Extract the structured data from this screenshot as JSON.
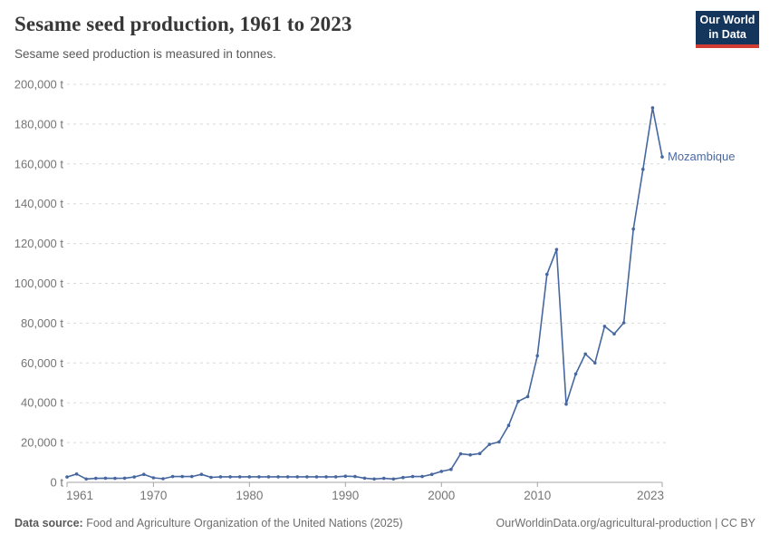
{
  "header": {
    "title": "Sesame seed production, 1961 to 2023",
    "subtitle": "Sesame seed production is measured in tonnes."
  },
  "logo": {
    "line1": "Our World",
    "line2": "in Data",
    "bg_color": "#14355c",
    "accent_color": "#d23d33"
  },
  "chart_data": {
    "type": "line",
    "title": "Sesame seed production, 1961 to 2023",
    "subtitle": "Sesame seed production is measured in tonnes.",
    "xlabel": "",
    "ylabel": "tonnes",
    "unit": "t",
    "xlim": [
      1961,
      2023
    ],
    "ylim": [
      0,
      200000
    ],
    "grid": "horizontal-dashed",
    "legend_position": "end-of-line",
    "entity_label": "Mozambique",
    "line_color": "#46679f",
    "x_ticks": [
      1961,
      1970,
      1980,
      1990,
      2000,
      2010,
      2023
    ],
    "y_ticks": [
      {
        "value": 0,
        "label": "0 t"
      },
      {
        "value": 20000,
        "label": "20,000 t"
      },
      {
        "value": 40000,
        "label": "40,000 t"
      },
      {
        "value": 60000,
        "label": "60,000 t"
      },
      {
        "value": 80000,
        "label": "80,000 t"
      },
      {
        "value": 100000,
        "label": "100,000 t"
      },
      {
        "value": 120000,
        "label": "120,000 t"
      },
      {
        "value": 140000,
        "label": "140,000 t"
      },
      {
        "value": 160000,
        "label": "160,000 t"
      },
      {
        "value": 180000,
        "label": "180,000 t"
      },
      {
        "value": 200000,
        "label": "200,000 t"
      }
    ],
    "series": [
      {
        "name": "Mozambique",
        "x": [
          1961,
          1962,
          1963,
          1964,
          1965,
          1966,
          1967,
          1968,
          1969,
          1970,
          1971,
          1972,
          1973,
          1974,
          1975,
          1976,
          1977,
          1978,
          1979,
          1980,
          1981,
          1982,
          1983,
          1984,
          1985,
          1986,
          1987,
          1988,
          1989,
          1990,
          1991,
          1992,
          1993,
          1994,
          1995,
          1996,
          1997,
          1998,
          1999,
          2000,
          2001,
          2002,
          2003,
          2004,
          2005,
          2006,
          2007,
          2008,
          2009,
          2010,
          2011,
          2012,
          2013,
          2014,
          2015,
          2016,
          2017,
          2018,
          2019,
          2020,
          2021,
          2022,
          2023
        ],
        "values": [
          2700,
          4200,
          1700,
          2000,
          2100,
          2000,
          2100,
          2700,
          4000,
          2300,
          1800,
          2900,
          2900,
          2900,
          4000,
          2500,
          2800,
          2800,
          2800,
          2800,
          2800,
          2800,
          2800,
          2800,
          2800,
          2800,
          2800,
          2800,
          2800,
          3100,
          2900,
          2100,
          1700,
          2000,
          1700,
          2400,
          2900,
          2900,
          4000,
          5500,
          6500,
          14300,
          13800,
          14500,
          19100,
          20300,
          28600,
          40700,
          43100,
          63600,
          104500,
          117000,
          39300,
          54500,
          64500,
          60000,
          78400,
          74600,
          80200,
          127300,
          157300,
          188200,
          163500
        ]
      }
    ]
  },
  "footer": {
    "source_label": "Data source:",
    "source_text": " Food and Agriculture Organization of the United Nations (2025)",
    "link_text": "OurWorldinData.org/agricultural-production | CC BY"
  },
  "colors": {
    "grid": "#d9d9d9",
    "axis": "#a3a3a3",
    "tick_label": "#757575",
    "title": "#373737",
    "subtitle": "#595959",
    "footer": "#6e6e6e"
  }
}
